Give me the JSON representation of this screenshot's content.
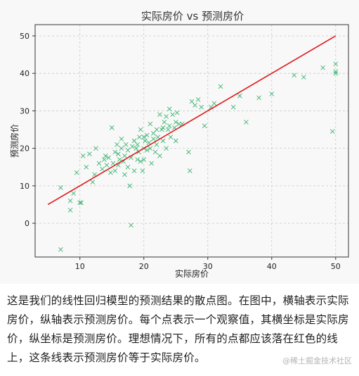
{
  "chart_data": {
    "type": "scatter",
    "title": "实际房价 vs 预测房价",
    "xlabel": "实际房价",
    "ylabel": "预测房价",
    "xlim": [
      3,
      52
    ],
    "ylim": [
      -9,
      53
    ],
    "xticks": [
      10,
      20,
      30,
      40,
      50
    ],
    "yticks": [
      0,
      10,
      20,
      30,
      40,
      50
    ],
    "grid": true,
    "points_color": "#3cb371",
    "line_color": "#dd1a1a",
    "reference_line": {
      "x": [
        5,
        50
      ],
      "y": [
        5,
        50
      ]
    },
    "points": [
      [
        7,
        -7
      ],
      [
        7,
        9.5
      ],
      [
        8.5,
        6
      ],
      [
        8.5,
        3.5
      ],
      [
        9,
        8
      ],
      [
        9.5,
        13.5
      ],
      [
        10,
        5.5
      ],
      [
        10.2,
        5.5
      ],
      [
        10.5,
        18
      ],
      [
        11,
        15
      ],
      [
        11.5,
        18.5
      ],
      [
        12,
        11
      ],
      [
        12.3,
        13
      ],
      [
        12.5,
        20
      ],
      [
        13,
        16
      ],
      [
        13.5,
        14.5
      ],
      [
        13.8,
        17
      ],
      [
        14,
        18
      ],
      [
        14.2,
        15.5
      ],
      [
        14.5,
        17.5
      ],
      [
        14.8,
        13.5
      ],
      [
        15,
        25.5
      ],
      [
        15.2,
        16
      ],
      [
        15.5,
        19
      ],
      [
        15.5,
        14
      ],
      [
        15.8,
        21
      ],
      [
        16,
        18.5
      ],
      [
        16,
        15.5
      ],
      [
        16.2,
        17
      ],
      [
        16.5,
        22.5
      ],
      [
        16.5,
        20
      ],
      [
        16.8,
        16.5
      ],
      [
        17,
        18
      ],
      [
        17,
        13
      ],
      [
        17.2,
        21
      ],
      [
        17.5,
        15
      ],
      [
        17.5,
        19.5
      ],
      [
        17.8,
        10
      ],
      [
        18,
        -0.5
      ],
      [
        18,
        17.5
      ],
      [
        18.2,
        20.5
      ],
      [
        18.5,
        14
      ],
      [
        18.5,
        22
      ],
      [
        18.8,
        20
      ],
      [
        19,
        21
      ],
      [
        19,
        17
      ],
      [
        19.2,
        19
      ],
      [
        19.3,
        23
      ],
      [
        19.5,
        16.5
      ],
      [
        19.5,
        25
      ],
      [
        19.8,
        14
      ],
      [
        20,
        23
      ],
      [
        20,
        20
      ],
      [
        20,
        17
      ],
      [
        20.2,
        22
      ],
      [
        20.5,
        19.5
      ],
      [
        20.5,
        23.5
      ],
      [
        20.8,
        21.5
      ],
      [
        21,
        26.5
      ],
      [
        21,
        20
      ],
      [
        21.2,
        16
      ],
      [
        21.5,
        22.5
      ],
      [
        21.5,
        24
      ],
      [
        21.8,
        19
      ],
      [
        22,
        21
      ],
      [
        22,
        25
      ],
      [
        22.2,
        23
      ],
      [
        22.5,
        18
      ],
      [
        22.5,
        29
      ],
      [
        22.8,
        25
      ],
      [
        23,
        22
      ],
      [
        23,
        25.5
      ],
      [
        23.2,
        27
      ],
      [
        23.5,
        20
      ],
      [
        23.5,
        28.5
      ],
      [
        23.8,
        25
      ],
      [
        24,
        30.5
      ],
      [
        24,
        26
      ],
      [
        24.2,
        23
      ],
      [
        24.5,
        29
      ],
      [
        24.8,
        25.5
      ],
      [
        25,
        22
      ],
      [
        25,
        27
      ],
      [
        25.2,
        29.5
      ],
      [
        25.5,
        26.5
      ],
      [
        26,
        26.5
      ],
      [
        27,
        19
      ],
      [
        27.2,
        14
      ],
      [
        27.5,
        32.5
      ],
      [
        28,
        31.5
      ],
      [
        28.5,
        33
      ],
      [
        29,
        31
      ],
      [
        29.5,
        26
      ],
      [
        30.5,
        31
      ],
      [
        31,
        32
      ],
      [
        32,
        36.5
      ],
      [
        34,
        31
      ],
      [
        35,
        34
      ],
      [
        36,
        27
      ],
      [
        38,
        33.5
      ],
      [
        40,
        34.5
      ],
      [
        43.5,
        39.5
      ],
      [
        45,
        39
      ],
      [
        48,
        41.5
      ],
      [
        49.5,
        24.5
      ],
      [
        50,
        40.5
      ],
      [
        50,
        40
      ],
      [
        50,
        42.5
      ]
    ]
  },
  "caption": "这是我们的线性回归模型的预测结果的散点图。在图中，横轴表示实际房价，纵轴表示预测房价。每个点表示一个观察值，其横坐标是实际房价，纵坐标是预测房价。理想情况下，所有的点都应该落在红色的线上，这条线表示预测房价等于实际房价。",
  "watermark": "@稀土掘金技术社区"
}
